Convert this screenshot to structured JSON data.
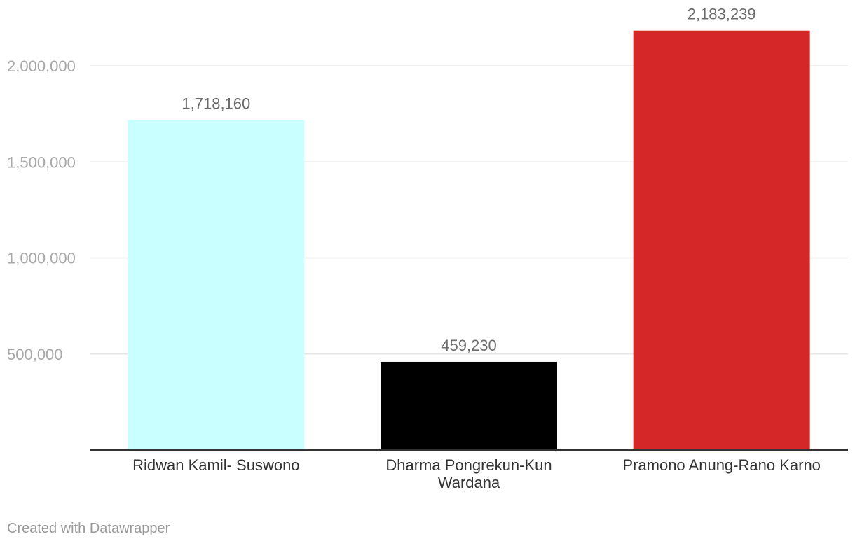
{
  "footer": {
    "credit": "Created with Datawrapper"
  },
  "chart_data": {
    "type": "bar",
    "categories": [
      [
        "Ridwan Kamil- Suswono"
      ],
      [
        "Dharma Pongrekun-Kun",
        "Wardana"
      ],
      [
        "Pramono Anung-Rano Karno"
      ]
    ],
    "values": [
      1718160,
      459230,
      2183239
    ],
    "value_labels": [
      "1,718,160",
      "459,230",
      "2,183,239"
    ],
    "colors": [
      "#c9ffff",
      "#000000",
      "#d62728"
    ],
    "yticks": [
      500000,
      1000000,
      1500000,
      2000000
    ],
    "ytick_labels": [
      "500,000",
      "1,000,000",
      "1,500,000",
      "2,000,000"
    ],
    "ylim": [
      0,
      2200000
    ],
    "grid": true,
    "title": "",
    "xlabel": "",
    "ylabel": ""
  }
}
